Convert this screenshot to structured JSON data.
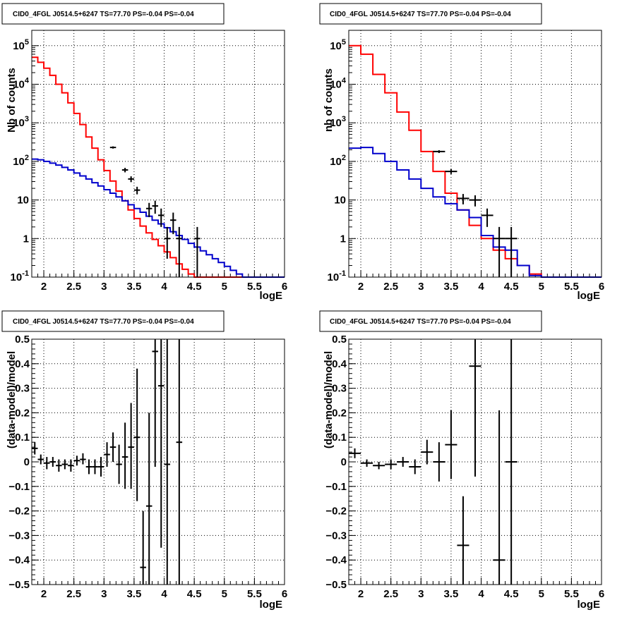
{
  "colors": {
    "total_model": "#ff0000",
    "component_model": "#0000cc",
    "data": "#000000",
    "grid": "#000000",
    "frame": "#000000",
    "background": "#ffffff"
  },
  "chart_data": [
    {
      "type": "line",
      "title": "CID0_4FGL J0514.5+6247 TS=77.70 PS=-0.04 PS=-0.04",
      "xlabel": "logE",
      "ylabel": "Nb of counts",
      "xlim": [
        1.8,
        6.0
      ],
      "ylim": [
        0.1,
        250000
      ],
      "yscale": "log",
      "grid": true,
      "x_ticks": [
        "2",
        "2.5",
        "3",
        "3.5",
        "4",
        "4.5",
        "5",
        "5.5",
        "6"
      ],
      "y_ticks": [
        "10^-1",
        "1",
        "10",
        "10^2",
        "10^3",
        "10^4",
        "10^5"
      ],
      "bin_edges": [
        1.8,
        1.9,
        2.0,
        2.1,
        2.2,
        2.3,
        2.4,
        2.5,
        2.6,
        2.7,
        2.8,
        2.9,
        3.0,
        3.1,
        3.2,
        3.3,
        3.4,
        3.5,
        3.6,
        3.7,
        3.8,
        3.9,
        4.0,
        4.1,
        4.2,
        4.3,
        4.4,
        4.5,
        4.6,
        4.7,
        4.8,
        4.9,
        5.0,
        5.1,
        5.2,
        5.3,
        5.4,
        5.5,
        5.6,
        5.7,
        5.8,
        5.9,
        6.0
      ],
      "series": [
        {
          "role": "total_model",
          "values": [
            50000,
            37000,
            26000,
            17000,
            10000,
            6000,
            3300,
            1750,
            900,
            430,
            220,
            110,
            58,
            31,
            17,
            9.5,
            5.5,
            3.3,
            2.1,
            1.4,
            0.95,
            0.65,
            0.45,
            0.32,
            0.22,
            0.16,
            0.12,
            0.1,
            0.1,
            0.1,
            0.1,
            0.1,
            0.1,
            0.1,
            0.1,
            0.1,
            0.1,
            0.1,
            0.1,
            0.1,
            0.1,
            0.1
          ]
        },
        {
          "role": "component_model",
          "values": [
            115,
            110,
            100,
            90,
            80,
            70,
            60,
            50,
            42,
            35,
            28,
            23,
            18.5,
            15,
            12,
            9.5,
            7.5,
            6,
            4.8,
            3.8,
            3.0,
            2.4,
            1.9,
            1.5,
            1.2,
            0.95,
            0.75,
            0.6,
            0.48,
            0.38,
            0.3,
            0.24,
            0.19,
            0.15,
            0.12,
            0.1,
            0.1,
            0.1,
            0.1,
            0.1,
            0.1,
            0.1
          ]
        },
        {
          "role": "data",
          "points": [
            {
              "x": 3.15,
              "y": 230,
              "ylo": 215,
              "yhi": 245
            },
            {
              "x": 3.35,
              "y": 60,
              "ylo": 52,
              "yhi": 68
            },
            {
              "x": 3.45,
              "y": 35,
              "ylo": 29,
              "yhi": 41
            },
            {
              "x": 3.55,
              "y": 18,
              "ylo": 14,
              "yhi": 22
            },
            {
              "x": 3.75,
              "y": 6,
              "ylo": 3.6,
              "yhi": 8.4
            },
            {
              "x": 3.85,
              "y": 7,
              "ylo": 4.4,
              "yhi": 9.6
            },
            {
              "x": 3.95,
              "y": 4,
              "ylo": 2.0,
              "yhi": 6.0
            },
            {
              "x": 4.05,
              "y": 1,
              "ylo": 0.3,
              "yhi": 2.0
            },
            {
              "x": 4.15,
              "y": 3,
              "ylo": 1.3,
              "yhi": 4.7
            },
            {
              "x": 4.25,
              "y": 1,
              "ylo": 0.1,
              "yhi": 2.0
            },
            {
              "x": 4.55,
              "y": 1,
              "ylo": 0.1,
              "yhi": 2.0
            }
          ]
        }
      ]
    },
    {
      "type": "line",
      "title": "CID0_4FGL J0514.5+6247 TS=77.70 PS=-0.04 PS=-0.04",
      "xlabel": "logE",
      "ylabel": "nb of counts",
      "xlim": [
        1.8,
        6.0
      ],
      "ylim": [
        0.1,
        250000
      ],
      "yscale": "log",
      "grid": true,
      "x_ticks": [
        "2",
        "2.5",
        "3",
        "3.5",
        "4",
        "4.5",
        "5",
        "5.5",
        "6"
      ],
      "y_ticks": [
        "10^-1",
        "1",
        "10",
        "10^2",
        "10^3",
        "10^4",
        "10^5"
      ],
      "bin_edges": [
        1.8,
        2.0,
        2.2,
        2.4,
        2.6,
        2.8,
        3.0,
        3.2,
        3.4,
        3.6,
        3.8,
        4.0,
        4.2,
        4.4,
        4.6,
        4.8,
        5.0,
        5.2,
        5.4,
        5.6,
        5.8,
        6.0
      ],
      "series": [
        {
          "role": "total_model",
          "values": [
            100000,
            60000,
            18000,
            6000,
            1900,
            640,
            180,
            55,
            15,
            5.5,
            2.2,
            1.0,
            0.5,
            0.3,
            0.2,
            0.12,
            0.1,
            0.1,
            0.1,
            0.1,
            0.1
          ]
        },
        {
          "role": "component_model",
          "values": [
            220,
            230,
            160,
            100,
            60,
            35,
            20,
            12,
            8,
            5.5,
            3.5,
            1.2,
            0.6,
            0.5,
            0.2,
            0.11,
            0.1,
            0.1,
            0.1,
            0.1,
            0.1
          ]
        },
        {
          "role": "data",
          "points": [
            {
              "x": 3.3,
              "y": 180,
              "ylo": 165,
              "yhi": 195
            },
            {
              "x": 3.5,
              "y": 55,
              "ylo": 47,
              "yhi": 63
            },
            {
              "x": 3.7,
              "y": 11,
              "ylo": 7.7,
              "yhi": 14.3
            },
            {
              "x": 3.9,
              "y": 10,
              "ylo": 6.8,
              "yhi": 13.2
            },
            {
              "x": 4.1,
              "y": 4,
              "ylo": 2.0,
              "yhi": 6.0
            },
            {
              "x": 4.3,
              "y": 1,
              "ylo": 0.1,
              "yhi": 2.0
            },
            {
              "x": 4.5,
              "y": 1,
              "ylo": 0.1,
              "yhi": 2.0
            }
          ]
        }
      ]
    },
    {
      "type": "scatter",
      "title": "CID0_4FGL J0514.5+6247 TS=77.70 PS=-0.04 PS=-0.04",
      "xlabel": "logE",
      "ylabel": "(data-model)/model",
      "xlim": [
        1.8,
        6.0
      ],
      "ylim": [
        -0.5,
        0.5
      ],
      "grid": true,
      "x_ticks": [
        "2",
        "2.5",
        "3",
        "3.5",
        "4",
        "4.5",
        "5",
        "5.5",
        "6"
      ],
      "y_ticks": [
        "−0.5",
        "−0.4",
        "−0.3",
        "−0.2",
        "−0.1",
        "0",
        "0.1",
        "0.2",
        "0.3",
        "0.4",
        "0.5"
      ],
      "points": [
        {
          "x": 1.85,
          "y": 0.055,
          "ylo": 0.03,
          "yhi": 0.08,
          "xlo": 1.8,
          "xhi": 1.9
        },
        {
          "x": 1.95,
          "y": 0.01,
          "ylo": -0.01,
          "yhi": 0.03,
          "xlo": 1.9,
          "xhi": 2.0
        },
        {
          "x": 2.05,
          "y": -0.005,
          "ylo": -0.03,
          "yhi": 0.02,
          "xlo": 2.0,
          "xhi": 2.1
        },
        {
          "x": 2.15,
          "y": 0.0,
          "ylo": -0.02,
          "yhi": 0.02,
          "xlo": 2.1,
          "xhi": 2.2
        },
        {
          "x": 2.25,
          "y": -0.015,
          "ylo": -0.04,
          "yhi": 0.01,
          "xlo": 2.2,
          "xhi": 2.3
        },
        {
          "x": 2.35,
          "y": -0.01,
          "ylo": -0.03,
          "yhi": 0.01,
          "xlo": 2.3,
          "xhi": 2.4
        },
        {
          "x": 2.45,
          "y": -0.015,
          "ylo": -0.04,
          "yhi": 0.01,
          "xlo": 2.4,
          "xhi": 2.5
        },
        {
          "x": 2.55,
          "y": 0.005,
          "ylo": -0.015,
          "yhi": 0.025,
          "xlo": 2.5,
          "xhi": 2.6
        },
        {
          "x": 2.65,
          "y": 0.01,
          "ylo": -0.01,
          "yhi": 0.035,
          "xlo": 2.6,
          "xhi": 2.7
        },
        {
          "x": 2.75,
          "y": -0.02,
          "ylo": -0.05,
          "yhi": 0.01,
          "xlo": 2.7,
          "xhi": 2.8
        },
        {
          "x": 2.85,
          "y": -0.02,
          "ylo": -0.05,
          "yhi": 0.01,
          "xlo": 2.8,
          "xhi": 2.9
        },
        {
          "x": 2.95,
          "y": -0.02,
          "ylo": -0.06,
          "yhi": 0.02,
          "xlo": 2.9,
          "xhi": 3.0
        },
        {
          "x": 3.05,
          "y": 0.03,
          "ylo": -0.02,
          "yhi": 0.08,
          "xlo": 3.0,
          "xhi": 3.1
        },
        {
          "x": 3.15,
          "y": 0.06,
          "ylo": 0.0,
          "yhi": 0.12,
          "xlo": 3.1,
          "xhi": 3.2
        },
        {
          "x": 3.25,
          "y": -0.01,
          "ylo": -0.09,
          "yhi": 0.07,
          "xlo": 3.2,
          "xhi": 3.3
        },
        {
          "x": 3.35,
          "y": 0.02,
          "ylo": -0.11,
          "yhi": 0.16,
          "xlo": 3.3,
          "xhi": 3.4
        },
        {
          "x": 3.45,
          "y": 0.06,
          "ylo": -0.11,
          "yhi": 0.24,
          "xlo": 3.4,
          "xhi": 3.5
        },
        {
          "x": 3.55,
          "y": 0.1,
          "ylo": -0.16,
          "yhi": 0.38,
          "xlo": 3.5,
          "xhi": 3.6
        },
        {
          "x": 3.65,
          "y": -0.43,
          "ylo": -0.5,
          "yhi": -0.2,
          "xlo": 3.6,
          "xhi": 3.7
        },
        {
          "x": 3.75,
          "y": -0.18,
          "ylo": -0.5,
          "yhi": 0.2,
          "xlo": 3.7,
          "xhi": 3.8
        },
        {
          "x": 3.85,
          "y": 0.45,
          "ylo": -0.02,
          "yhi": 0.5,
          "xlo": 3.8,
          "xhi": 3.9
        },
        {
          "x": 3.95,
          "y": 0.31,
          "ylo": -0.35,
          "yhi": 0.5,
          "xlo": 3.9,
          "xhi": 4.0
        },
        {
          "x": 4.05,
          "y": -0.01,
          "ylo": -0.5,
          "yhi": 0.5,
          "xlo": 4.0,
          "xhi": 4.1
        },
        {
          "x": 4.25,
          "y": 0.08,
          "ylo": -0.5,
          "yhi": 0.5,
          "xlo": 4.2,
          "xhi": 4.3
        }
      ]
    },
    {
      "type": "scatter",
      "title": "CID0_4FGL J0514.5+6247 TS=77.70 PS=-0.04 PS=-0.04",
      "xlabel": "logE",
      "ylabel": "(data-model)/model",
      "xlim": [
        1.8,
        6.0
      ],
      "ylim": [
        -0.5,
        0.5
      ],
      "grid": true,
      "x_ticks": [
        "2",
        "2.5",
        "3",
        "3.5",
        "4",
        "4.5",
        "5",
        "5.5",
        "6"
      ],
      "y_ticks": [
        "−0.5",
        "−0.4",
        "−0.3",
        "−0.2",
        "−0.1",
        "0",
        "0.1",
        "0.2",
        "0.3",
        "0.4",
        "0.5"
      ],
      "points": [
        {
          "x": 1.9,
          "y": 0.035,
          "ylo": 0.015,
          "yhi": 0.055,
          "xlo": 1.8,
          "xhi": 2.0
        },
        {
          "x": 2.1,
          "y": -0.005,
          "ylo": -0.02,
          "yhi": 0.01,
          "xlo": 2.0,
          "xhi": 2.2
        },
        {
          "x": 2.3,
          "y": -0.015,
          "ylo": -0.03,
          "yhi": 0.0,
          "xlo": 2.2,
          "xhi": 2.4
        },
        {
          "x": 2.5,
          "y": -0.01,
          "ylo": -0.03,
          "yhi": 0.01,
          "xlo": 2.4,
          "xhi": 2.6
        },
        {
          "x": 2.7,
          "y": 0.0,
          "ylo": -0.02,
          "yhi": 0.02,
          "xlo": 2.6,
          "xhi": 2.8
        },
        {
          "x": 2.9,
          "y": -0.02,
          "ylo": -0.05,
          "yhi": 0.01,
          "xlo": 2.8,
          "xhi": 3.0
        },
        {
          "x": 3.1,
          "y": 0.04,
          "ylo": -0.01,
          "yhi": 0.09,
          "xlo": 3.0,
          "xhi": 3.2
        },
        {
          "x": 3.3,
          "y": 0.0,
          "ylo": -0.08,
          "yhi": 0.08,
          "xlo": 3.2,
          "xhi": 3.4
        },
        {
          "x": 3.5,
          "y": 0.07,
          "ylo": -0.07,
          "yhi": 0.21,
          "xlo": 3.4,
          "xhi": 3.6
        },
        {
          "x": 3.7,
          "y": -0.34,
          "ylo": -0.5,
          "yhi": -0.14,
          "xlo": 3.6,
          "xhi": 3.8
        },
        {
          "x": 3.9,
          "y": 0.39,
          "ylo": -0.06,
          "yhi": 0.5,
          "xlo": 3.8,
          "xhi": 4.0
        },
        {
          "x": 4.3,
          "y": -0.4,
          "ylo": -0.5,
          "yhi": 0.21,
          "xlo": 4.2,
          "xhi": 4.4
        },
        {
          "x": 4.5,
          "y": 0.0,
          "ylo": -0.5,
          "yhi": 0.5,
          "xlo": 4.4,
          "xhi": 4.6
        }
      ]
    }
  ]
}
